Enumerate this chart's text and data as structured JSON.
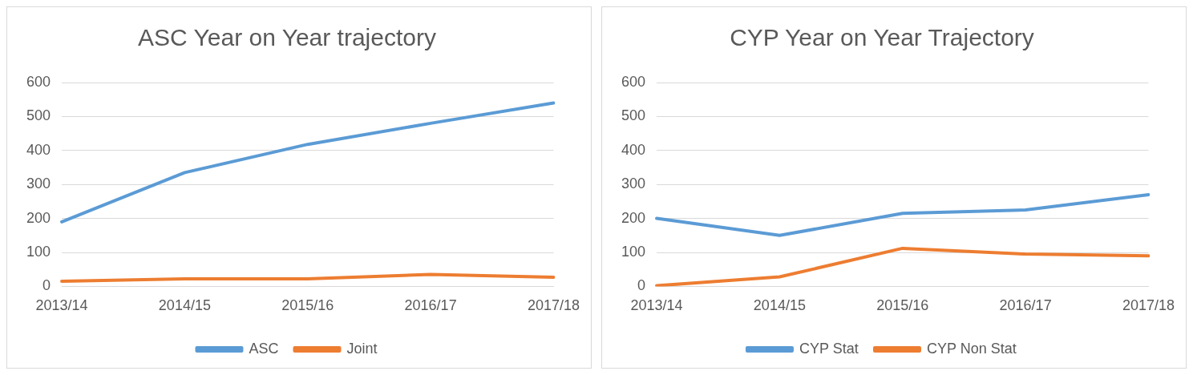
{
  "chart_data": [
    {
      "type": "line",
      "title": "ASC Year on Year trajectory",
      "categories": [
        "2013/14",
        "2014/15",
        "2015/16",
        "2016/17",
        "2017/18"
      ],
      "series": [
        {
          "name": "ASC",
          "color": "#5b9bd5",
          "values": [
            190,
            335,
            418,
            480,
            540
          ]
        },
        {
          "name": "Joint",
          "color": "#ed7d31",
          "values": [
            15,
            22,
            22,
            35,
            27
          ]
        }
      ],
      "ylim": [
        0,
        600
      ],
      "yticks": [
        0,
        100,
        200,
        300,
        400,
        500,
        600
      ],
      "grid": "y",
      "legend": "bottom",
      "marker": "none",
      "line_style": "solid"
    },
    {
      "type": "line",
      "title": "CYP Year on Year Trajectory",
      "categories": [
        "2013/14",
        "2014/15",
        "2015/16",
        "2016/17",
        "2017/18"
      ],
      "series": [
        {
          "name": "CYP Stat",
          "color": "#5b9bd5",
          "values": [
            200,
            150,
            215,
            225,
            270
          ]
        },
        {
          "name": "CYP Non Stat",
          "color": "#ed7d31",
          "values": [
            2,
            28,
            112,
            95,
            90
          ]
        }
      ],
      "ylim": [
        0,
        600
      ],
      "yticks": [
        0,
        100,
        200,
        300,
        400,
        500,
        600
      ],
      "grid": "y",
      "legend": "bottom",
      "marker": "none",
      "line_style": "solid"
    }
  ]
}
